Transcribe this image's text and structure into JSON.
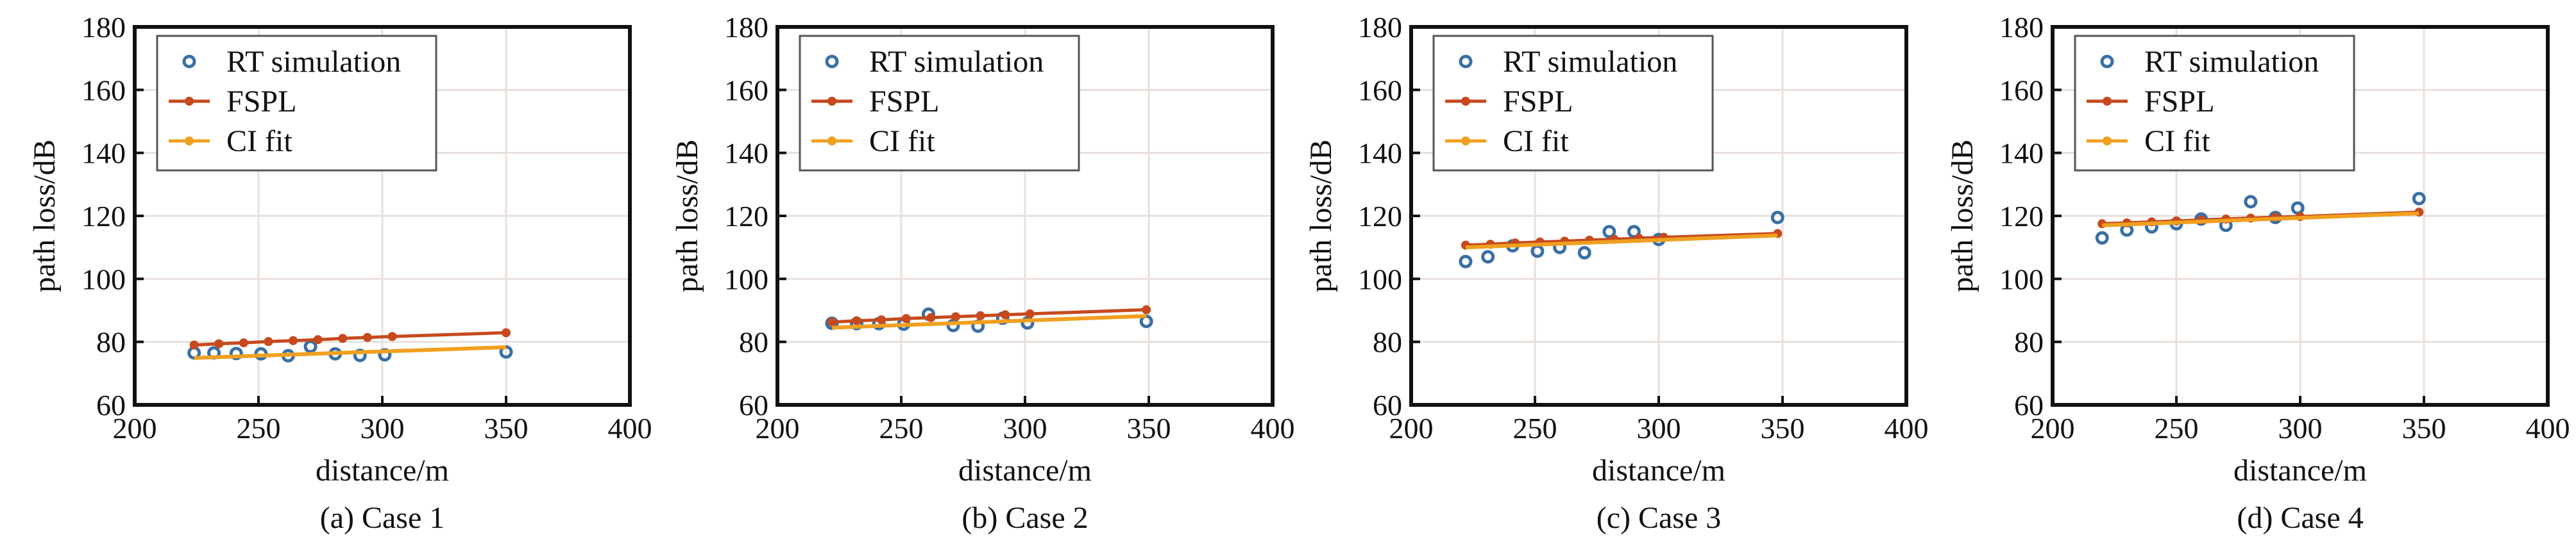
{
  "colors": {
    "rt": "#3a6fa5",
    "fspl": "#c64a1e",
    "ci": "#f0a020",
    "grid": "#e8e0dc",
    "axis": "#111111"
  },
  "chart_data": [
    {
      "type": "line",
      "caption": "(a) Case 1",
      "xlabel": "distance/m",
      "ylabel": "path loss/dB",
      "xlim": [
        200,
        400
      ],
      "ylim": [
        60,
        180
      ],
      "xticks": [
        200,
        250,
        300,
        350,
        400
      ],
      "yticks": [
        60,
        80,
        100,
        120,
        140,
        160,
        180
      ],
      "grid": true,
      "legend": "top-left",
      "series": [
        {
          "name": "RT simulation",
          "kind": "scatter",
          "x": [
            224,
            232,
            241,
            251,
            262,
            271,
            281,
            291,
            301,
            350
          ],
          "y": [
            76.5,
            76.5,
            76.3,
            76.2,
            75.6,
            78.5,
            76.2,
            75.7,
            75.9,
            76.8
          ]
        },
        {
          "name": "FSPL",
          "kind": "line-markers",
          "x": [
            224,
            234,
            244,
            254,
            264,
            274,
            284,
            294,
            304,
            350
          ],
          "y": [
            79.0,
            79.4,
            79.7,
            80.1,
            80.4,
            80.7,
            81.1,
            81.4,
            81.7,
            82.9
          ]
        },
        {
          "name": "CI fit",
          "kind": "line",
          "x": [
            224,
            350
          ],
          "y": [
            74.9,
            78.3
          ]
        }
      ]
    },
    {
      "type": "line",
      "caption": "(b) Case 2",
      "xlabel": "distance/m",
      "ylabel": "path loss/dB",
      "xlim": [
        200,
        400
      ],
      "ylim": [
        60,
        180
      ],
      "xticks": [
        200,
        250,
        300,
        350,
        400
      ],
      "yticks": [
        60,
        80,
        100,
        120,
        140,
        160,
        180
      ],
      "grid": true,
      "legend": "top-left",
      "series": [
        {
          "name": "RT simulation",
          "kind": "scatter",
          "x": [
            222,
            232,
            241,
            251,
            261,
            271,
            281,
            291,
            301,
            349
          ],
          "y": [
            85.9,
            85.8,
            85.8,
            85.6,
            88.8,
            85.2,
            85.0,
            87.5,
            86.0,
            86.5
          ]
        },
        {
          "name": "FSPL",
          "kind": "line-markers",
          "x": [
            222,
            232,
            242,
            252,
            262,
            272,
            282,
            292,
            302,
            349
          ],
          "y": [
            86.3,
            86.7,
            87.0,
            87.4,
            87.7,
            88.0,
            88.3,
            88.6,
            88.9,
            90.2
          ]
        },
        {
          "name": "CI fit",
          "kind": "line",
          "x": [
            222,
            349
          ],
          "y": [
            84.5,
            88.2
          ]
        }
      ]
    },
    {
      "type": "line",
      "caption": "(c) Case 3",
      "xlabel": "distance/m",
      "ylabel": "path loss/dB",
      "xlim": [
        200,
        400
      ],
      "ylim": [
        60,
        180
      ],
      "xticks": [
        200,
        250,
        300,
        350,
        400
      ],
      "yticks": [
        60,
        80,
        100,
        120,
        140,
        160,
        180
      ],
      "grid": true,
      "legend": "top-left",
      "series": [
        {
          "name": "RT simulation",
          "kind": "scatter",
          "x": [
            222,
            231,
            241,
            251,
            260,
            270,
            280,
            290,
            300,
            348
          ],
          "y": [
            105.5,
            107.0,
            110.5,
            108.8,
            110.0,
            108.3,
            115.0,
            115.0,
            112.5,
            119.5
          ]
        },
        {
          "name": "FSPL",
          "kind": "line-markers",
          "x": [
            222,
            232,
            242,
            252,
            262,
            272,
            282,
            292,
            302,
            348
          ],
          "y": [
            110.7,
            111.0,
            111.4,
            111.7,
            112.0,
            112.3,
            112.6,
            112.9,
            113.2,
            114.4
          ]
        },
        {
          "name": "CI fit",
          "kind": "line",
          "x": [
            222,
            348
          ],
          "y": [
            110.0,
            113.8
          ]
        }
      ]
    },
    {
      "type": "line",
      "caption": "(d) Case 4",
      "xlabel": "distance/m",
      "ylabel": "path loss/dB",
      "xlim": [
        200,
        400
      ],
      "ylim": [
        60,
        180
      ],
      "xticks": [
        200,
        250,
        300,
        350,
        400
      ],
      "yticks": [
        60,
        80,
        100,
        120,
        140,
        160,
        180
      ],
      "grid": true,
      "legend": "top-left",
      "series": [
        {
          "name": "RT simulation",
          "kind": "scatter",
          "x": [
            220,
            230,
            240,
            250,
            260,
            270,
            280,
            290,
            299,
            348
          ],
          "y": [
            113.0,
            115.5,
            116.5,
            117.5,
            119.0,
            117.0,
            124.5,
            119.5,
            122.5,
            125.5
          ]
        },
        {
          "name": "FSPL",
          "kind": "line-markers",
          "x": [
            220,
            230,
            240,
            250,
            260,
            270,
            280,
            290,
            300,
            348
          ],
          "y": [
            117.5,
            117.8,
            118.1,
            118.4,
            118.7,
            119.0,
            119.3,
            119.6,
            119.8,
            121.2
          ]
        },
        {
          "name": "CI fit",
          "kind": "line",
          "x": [
            220,
            348
          ],
          "y": [
            117.0,
            120.8
          ]
        }
      ]
    }
  ]
}
